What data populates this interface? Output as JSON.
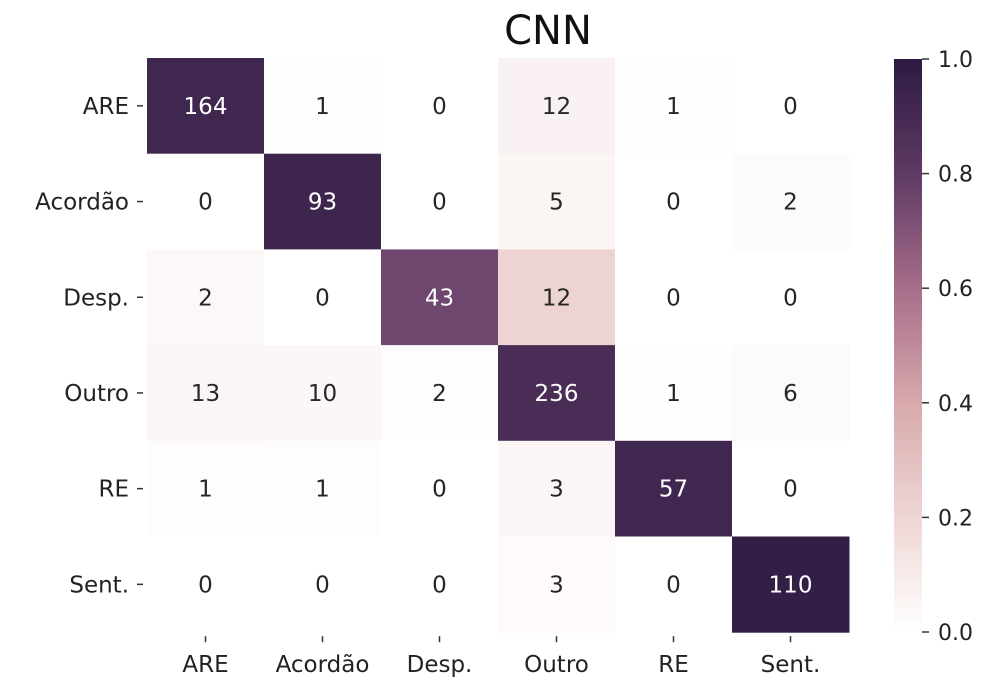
{
  "chart_data": {
    "type": "heatmap",
    "title": "CNN",
    "xlabel": "",
    "ylabel": "",
    "row_labels": [
      "ARE",
      "Acordão",
      "Desp.",
      "Outro",
      "RE",
      "Sent."
    ],
    "col_labels": [
      "ARE",
      "Acordão",
      "Desp.",
      "Outro",
      "RE",
      "Sent."
    ],
    "values": [
      [
        164,
        1,
        0,
        12,
        1,
        0
      ],
      [
        0,
        93,
        0,
        5,
        0,
        2
      ],
      [
        2,
        0,
        43,
        12,
        0,
        0
      ],
      [
        13,
        10,
        2,
        236,
        1,
        6
      ],
      [
        1,
        1,
        0,
        3,
        57,
        0
      ],
      [
        0,
        0,
        0,
        3,
        0,
        110
      ]
    ],
    "colorbar": {
      "range": [
        0.0,
        1.0
      ],
      "ticks": [
        "0.0",
        "0.2",
        "0.4",
        "0.6",
        "0.8",
        "1.0"
      ],
      "colors": [
        "#ffffff",
        "#eed6d4",
        "#d7a9ac",
        "#a76d8a",
        "#5e3a64",
        "#2c1a41"
      ]
    },
    "normalization": "row",
    "grid": false
  }
}
